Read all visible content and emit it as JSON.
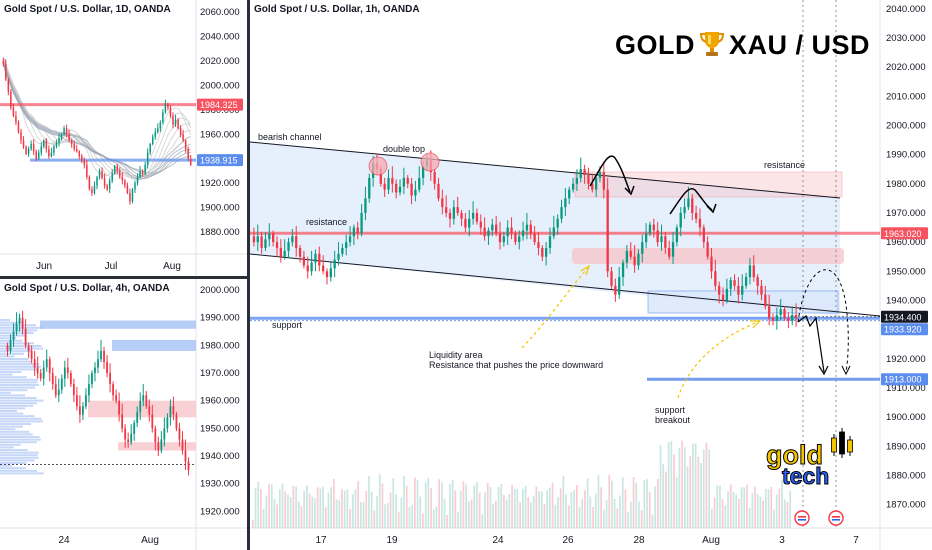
{
  "colors": {
    "up": "#089981",
    "down": "#f23645",
    "red_line": "#f7525f",
    "blue_line": "#5b8def",
    "zone_red": "#f8c6ca",
    "zone_blue": "#9dbcf5",
    "channel_fill": "#dce8fb",
    "brand_yellow": "#f5c400",
    "brand_blue": "#2962ff"
  },
  "daily": {
    "title": "Gold Spot / U.S. Dollar, 1D, OANDA",
    "y_ticks": [
      "2060.000",
      "2040.000",
      "2020.000",
      "2000.000",
      "1980.000",
      "1960.000",
      "1940.000",
      "1920.000",
      "1900.000",
      "1880.000"
    ],
    "x_ticks": [
      "Jun",
      "Jul",
      "Aug"
    ],
    "tags": [
      {
        "label": "1984.325",
        "color": "#f7525f"
      },
      {
        "label": "1938.915",
        "color": "#5b8def"
      }
    ],
    "y_range": [
      1862,
      2070
    ]
  },
  "h4": {
    "title": "Gold Spot / U.S. Dollar, 4h, OANDA",
    "y_ticks": [
      "2000.000",
      "1990.000",
      "1980.000",
      "1970.000",
      "1960.000",
      "1950.000",
      "1940.000",
      "1930.000",
      "1920.000"
    ],
    "x_ticks": [
      "24",
      "Aug"
    ],
    "y_range": [
      1914,
      2004
    ]
  },
  "main": {
    "title": "Gold Spot / U.S. Dollar, 1h, OANDA",
    "brand_left": "GOLD",
    "brand_right": "XAU / USD",
    "y_ticks": [
      "2040.000",
      "2030.000",
      "2020.000",
      "2010.000",
      "2000.000",
      "1990.000",
      "1980.000",
      "1970.000",
      "1960.000",
      "1950.000",
      "1940.000",
      "1930.000",
      "1920.000",
      "1910.000",
      "1900.000",
      "1890.000",
      "1880.000",
      "1870.000"
    ],
    "x_ticks": [
      "17",
      "19",
      "24",
      "26",
      "28",
      "Aug",
      "3",
      "7"
    ],
    "price_tags": [
      {
        "label": "1963.020",
        "color": "#f7525f"
      },
      {
        "label": "1934.400",
        "color": "#131722"
      },
      {
        "label": "1933.920",
        "color": "#5b8def"
      },
      {
        "label": "1913.000",
        "color": "#5b8def"
      }
    ],
    "annotations": {
      "bearish_channel": "bearish channel",
      "double_top": "double top",
      "resistance_left": "resistance",
      "resistance_right": "resistance",
      "support": "support",
      "liquidity_1": "Liquidity area",
      "liquidity_2": "Resistance that pushes the price downward",
      "support_breakout_1": "support",
      "support_breakout_2": "breakout"
    },
    "logo": {
      "line1": "gold",
      "line2": "tech"
    },
    "y_range": [
      1862,
      2043
    ]
  },
  "chart_data": [
    {
      "type": "candlestick",
      "title": "Gold Spot / U.S. Dollar, 1D, OANDA",
      "x_ticks": [
        "Jun",
        "Jul",
        "Aug"
      ],
      "ylim": [
        1862,
        2070
      ],
      "levels": {
        "resistance": 1984.325,
        "support": 1938.915
      },
      "close_path": [
        2018,
        2005,
        1995,
        1982,
        1975,
        1970,
        1962,
        1955,
        1950,
        1944,
        1948,
        1952,
        1946,
        1940,
        1945,
        1950,
        1955,
        1948,
        1942,
        1945,
        1950,
        1953,
        1957,
        1960,
        1965,
        1960,
        1955,
        1952,
        1948,
        1946,
        1942,
        1938,
        1935,
        1925,
        1915,
        1912,
        1918,
        1925,
        1930,
        1924,
        1918,
        1915,
        1922,
        1928,
        1934,
        1930,
        1925,
        1922,
        1918,
        1912,
        1905,
        1915,
        1920,
        1925,
        1930,
        1928,
        1935,
        1945,
        1952,
        1958,
        1962,
        1965,
        1970,
        1978,
        1985,
        1982,
        1975,
        1968,
        1972,
        1965,
        1960,
        1955,
        1948,
        1940,
        1935
      ]
    },
    {
      "type": "candlestick",
      "title": "Gold Spot / U.S. Dollar, 4h, OANDA",
      "x_ticks": [
        "24",
        "Aug"
      ],
      "ylim": [
        1914,
        2004
      ],
      "zones": [
        {
          "from": 1986,
          "to": 1989
        },
        {
          "from": 1978,
          "to": 1982
        },
        {
          "from": 1954,
          "to": 1960
        },
        {
          "from": 1942,
          "to": 1945
        }
      ],
      "close_path": [
        1978,
        1982,
        1985,
        1988,
        1990,
        1986,
        1980,
        1978,
        1975,
        1972,
        1970,
        1968,
        1972,
        1975,
        1970,
        1966,
        1962,
        1964,
        1968,
        1972,
        1970,
        1966,
        1962,
        1958,
        1955,
        1958,
        1962,
        1966,
        1970,
        1972,
        1975,
        1978,
        1974,
        1970,
        1966,
        1962,
        1960,
        1955,
        1950,
        1946,
        1945,
        1948,
        1952,
        1956,
        1960,
        1962,
        1958,
        1955,
        1950,
        1945,
        1942,
        1946,
        1950,
        1954,
        1958,
        1955,
        1950,
        1946,
        1942,
        1938,
        1935
      ]
    },
    {
      "type": "candlestick",
      "title": "Gold Spot / U.S. Dollar, 1h, OANDA",
      "x_ticks": [
        "17",
        "19",
        "24",
        "26",
        "28",
        "Aug",
        "3",
        "7"
      ],
      "ylim": [
        1862,
        2043
      ],
      "levels": {
        "resistance": 1963.02,
        "support": 1933.92,
        "target": 1913.0,
        "last_price": 1934.4
      },
      "zones": [
        {
          "label": "resistance",
          "from": 1974,
          "to": 1983
        },
        {
          "label": "Liquidity area",
          "from": 1952,
          "to": 1956
        }
      ],
      "close_path": [
        1960,
        1962,
        1958,
        1961,
        1963,
        1960,
        1958,
        1955,
        1957,
        1960,
        1962,
        1958,
        1955,
        1952,
        1950,
        1953,
        1956,
        1952,
        1950,
        1948,
        1951,
        1954,
        1956,
        1958,
        1960,
        1962,
        1965,
        1963,
        1970,
        1975,
        1982,
        1987,
        1985,
        1980,
        1978,
        1982,
        1980,
        1977,
        1979,
        1982,
        1980,
        1976,
        1978,
        1982,
        1986,
        1988,
        1984,
        1980,
        1975,
        1972,
        1970,
        1968,
        1972,
        1970,
        1968,
        1965,
        1968,
        1970,
        1967,
        1965,
        1962,
        1964,
        1966,
        1963,
        1960,
        1962,
        1965,
        1963,
        1960,
        1962,
        1964,
        1966,
        1963,
        1960,
        1958,
        1955,
        1958,
        1962,
        1965,
        1968,
        1972,
        1975,
        1978,
        1980,
        1982,
        1985,
        1983,
        1980,
        1978,
        1982,
        1984,
        1978,
        1950,
        1945,
        1942,
        1948,
        1953,
        1957,
        1955,
        1952,
        1956,
        1960,
        1963,
        1966,
        1964,
        1960,
        1962,
        1958,
        1955,
        1960,
        1965,
        1970,
        1972,
        1975,
        1970,
        1968,
        1965,
        1960,
        1955,
        1950,
        1945,
        1942,
        1940,
        1944,
        1947,
        1945,
        1942,
        1945,
        1948,
        1952,
        1948,
        1945,
        1942,
        1938,
        1934,
        1933,
        1935,
        1937,
        1934,
        1933,
        1935,
        1934
      ]
    }
  ]
}
